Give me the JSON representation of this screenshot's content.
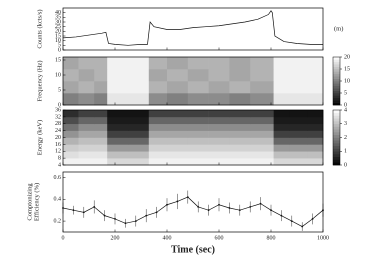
{
  "chart_data": [
    {
      "type": "line",
      "ylabel": "Counts (kcts/s)",
      "annotation": "(m)",
      "color": "#111",
      "x": [
        0,
        50,
        100,
        150,
        165,
        175,
        200,
        250,
        300,
        325,
        335,
        350,
        400,
        450,
        500,
        550,
        600,
        650,
        700,
        750,
        790,
        800,
        805,
        815,
        850,
        900,
        950,
        1000
      ],
      "values": [
        13,
        14,
        16,
        18,
        19,
        7,
        6,
        5,
        6,
        6,
        30,
        25,
        22,
        22,
        24,
        25,
        26,
        28,
        30,
        33,
        38,
        42,
        40,
        15,
        9,
        7,
        6,
        6
      ],
      "xlim": [
        0,
        1000
      ],
      "ylim": [
        0,
        45
      ],
      "yticks": [
        0,
        5,
        10,
        15,
        20,
        25,
        30,
        35,
        40
      ]
    },
    {
      "type": "heatmap",
      "ylabel": "Frequency (Hz)",
      "x_edges": [
        0,
        60,
        120,
        170,
        250,
        330,
        400,
        480,
        560,
        640,
        720,
        810,
        870,
        940,
        1000
      ],
      "y_edges": [
        0,
        4,
        8,
        12,
        16
      ],
      "values": [
        [
          10,
          11,
          10,
          18,
          18,
          11,
          10,
          11,
          11,
          10,
          11,
          18,
          18,
          18
        ],
        [
          13,
          14,
          13,
          19,
          19,
          14,
          13,
          14,
          13,
          14,
          13,
          19,
          19,
          19
        ],
        [
          14,
          13,
          14,
          19,
          19,
          13,
          14,
          13,
          14,
          13,
          14,
          19,
          19,
          19
        ],
        [
          13,
          14,
          14,
          19,
          19,
          14,
          13,
          14,
          14,
          13,
          14,
          19,
          19,
          19
        ]
      ],
      "xlim": [
        0,
        1000
      ],
      "ylim": [
        0,
        16
      ],
      "yticks": [
        0,
        5,
        10,
        15
      ],
      "zlim": [
        0,
        20
      ],
      "zticks": [
        0,
        5,
        10,
        15,
        20
      ]
    },
    {
      "type": "heatmap",
      "ylabel": "Energy (keV)",
      "x_edges": [
        0,
        60,
        120,
        170,
        250,
        330,
        400,
        480,
        560,
        640,
        720,
        810,
        870,
        940,
        1000
      ],
      "y_edges": [
        4,
        8,
        12,
        16,
        20,
        24,
        28,
        32,
        36
      ],
      "values": [
        [
          3.8,
          3.8,
          3.8,
          3.4,
          3.4,
          3.8,
          3.8,
          3.8,
          3.8,
          3.8,
          3.8,
          3.4,
          3.4,
          3.4
        ],
        [
          3.5,
          3.6,
          3.6,
          3.0,
          3.0,
          3.6,
          3.6,
          3.6,
          3.6,
          3.6,
          3.6,
          3.0,
          3.0,
          3.0
        ],
        [
          3.2,
          3.3,
          3.3,
          2.4,
          2.4,
          3.3,
          3.3,
          3.3,
          3.3,
          3.3,
          3.3,
          2.4,
          2.4,
          2.4
        ],
        [
          2.8,
          3.0,
          3.0,
          1.6,
          1.6,
          3.0,
          3.0,
          3.0,
          3.0,
          3.0,
          3.0,
          1.6,
          1.6,
          1.6
        ],
        [
          2.3,
          2.6,
          2.6,
          1.0,
          1.0,
          2.6,
          2.6,
          2.6,
          2.6,
          2.6,
          2.6,
          1.0,
          1.0,
          1.0
        ],
        [
          1.8,
          2.2,
          2.2,
          0.6,
          0.6,
          2.2,
          2.2,
          2.2,
          2.2,
          2.2,
          2.2,
          0.6,
          0.6,
          0.6
        ],
        [
          1.2,
          1.6,
          1.6,
          0.4,
          0.4,
          1.6,
          1.6,
          1.6,
          1.6,
          1.6,
          1.6,
          0.4,
          0.4,
          0.4
        ],
        [
          0.7,
          1.0,
          1.0,
          0.3,
          0.3,
          1.0,
          1.0,
          1.0,
          1.0,
          1.0,
          1.0,
          0.3,
          0.3,
          0.3
        ]
      ],
      "xlim": [
        0,
        1000
      ],
      "ylim": [
        4,
        36
      ],
      "yticks": [
        4,
        8,
        12,
        16,
        20,
        24,
        28,
        32,
        36
      ],
      "zlim": [
        0,
        4
      ],
      "zticks": [
        0,
        1,
        2,
        3,
        4
      ]
    },
    {
      "type": "errorline",
      "ylabel": [
        "Comptonizing",
        "Efficiency (%)"
      ],
      "xlabel": "Time (sec)",
      "color": "#111",
      "x": [
        0,
        40,
        80,
        120,
        160,
        200,
        240,
        280,
        320,
        360,
        400,
        440,
        480,
        520,
        560,
        600,
        640,
        680,
        720,
        760,
        800,
        840,
        880,
        920,
        960,
        1000
      ],
      "values": [
        0.32,
        0.3,
        0.28,
        0.33,
        0.25,
        0.22,
        0.18,
        0.2,
        0.25,
        0.28,
        0.35,
        0.38,
        0.42,
        0.33,
        0.3,
        0.35,
        0.32,
        0.3,
        0.33,
        0.36,
        0.3,
        0.25,
        0.2,
        0.15,
        0.22,
        0.3
      ],
      "errors": [
        0.05,
        0.04,
        0.05,
        0.06,
        0.05,
        0.05,
        0.04,
        0.05,
        0.06,
        0.05,
        0.06,
        0.07,
        0.06,
        0.05,
        0.05,
        0.06,
        0.05,
        0.05,
        0.05,
        0.06,
        0.05,
        0.05,
        0.05,
        0.04,
        0.05,
        0.06
      ],
      "xlim": [
        0,
        1000
      ],
      "ylim": [
        0.1,
        0.65
      ],
      "yticks": [
        0.2,
        0.4,
        0.6
      ],
      "xticks": [
        0,
        200,
        400,
        600,
        800,
        1000
      ]
    }
  ]
}
